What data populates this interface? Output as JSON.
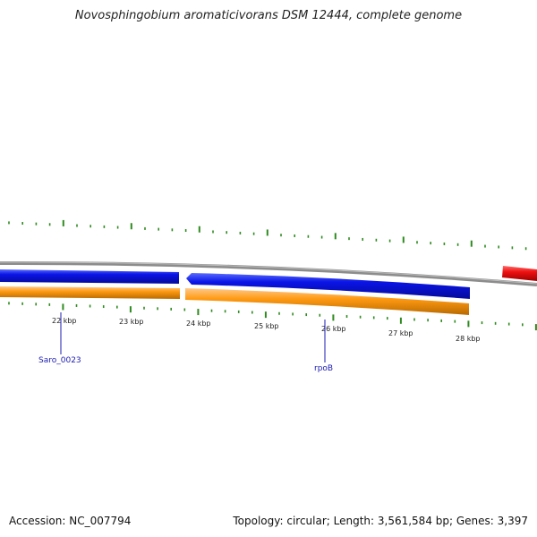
{
  "title": "Novosphingobium aromaticivorans DSM 12444, complete genome",
  "footer": {
    "accession": "Accession: NC_007794",
    "summary": "Topology: circular; Length: 3,561,584 bp; Genes: 3,397"
  },
  "ticks": [
    {
      "label": "22 kbp"
    },
    {
      "label": "23 kbp"
    },
    {
      "label": "24 kbp"
    },
    {
      "label": "25 kbp"
    },
    {
      "label": "26 kbp"
    },
    {
      "label": "27 kbp"
    },
    {
      "label": "28 kbp"
    }
  ],
  "genes": [
    {
      "label": "Saro_0023"
    },
    {
      "label": "rpoB"
    }
  ],
  "colors": {
    "backbone": "#8c8c8c",
    "forward_gene": "#0a14e6",
    "cds": "#ff9a12",
    "cds_edge": "#b86a00",
    "rrna": "#ee1111",
    "tick": "#2e8b1f",
    "gene_label": "#1b1bb3",
    "tick_label": "#222222"
  }
}
